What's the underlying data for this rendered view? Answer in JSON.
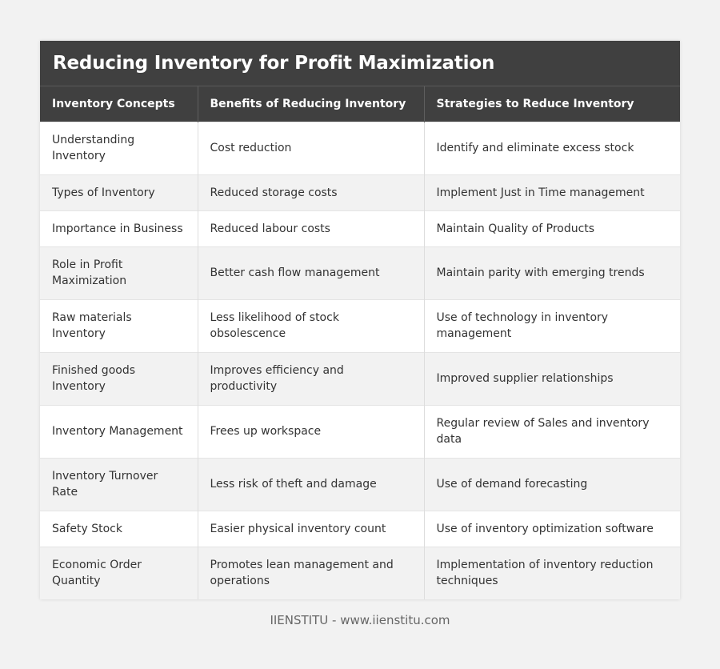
{
  "title": "Reducing Inventory for Profit Maximization",
  "headers": [
    "Inventory Concepts",
    "Benefits of Reducing Inventory",
    "Strategies to Reduce Inventory"
  ],
  "rows": [
    [
      "Understanding Inventory",
      "Cost reduction",
      "Identify and eliminate excess stock"
    ],
    [
      "Types of Inventory",
      "Reduced storage costs",
      "Implement Just in Time management"
    ],
    [
      "Importance in Business",
      "Reduced labour costs",
      "Maintain Quality of Products"
    ],
    [
      "Role in Profit Maximization",
      "Better cash flow management",
      "Maintain parity with emerging trends"
    ],
    [
      "Raw materials Inventory",
      "Less likelihood of stock obsolescence",
      "Use of technology in inventory management"
    ],
    [
      "Finished goods Inventory",
      "Improves efficiency and productivity",
      "Improved supplier relationships"
    ],
    [
      "Inventory Management",
      "Frees up workspace",
      "Regular review of Sales and inventory data"
    ],
    [
      "Inventory Turnover Rate",
      "Less risk of theft and damage",
      "Use of demand forecasting"
    ],
    [
      "Safety Stock",
      "Easier physical inventory count",
      "Use of inventory optimization software"
    ],
    [
      "Economic Order Quantity",
      "Promotes lean management and operations",
      "Implementation of inventory reduction techniques"
    ]
  ],
  "footer": "IIENSTITU - www.iienstitu.com",
  "colors": {
    "header_bg": "#404040",
    "header_text": "#ffffff",
    "row_alt_bg": "#f2f2f2",
    "page_bg": "#f2f2f2"
  }
}
